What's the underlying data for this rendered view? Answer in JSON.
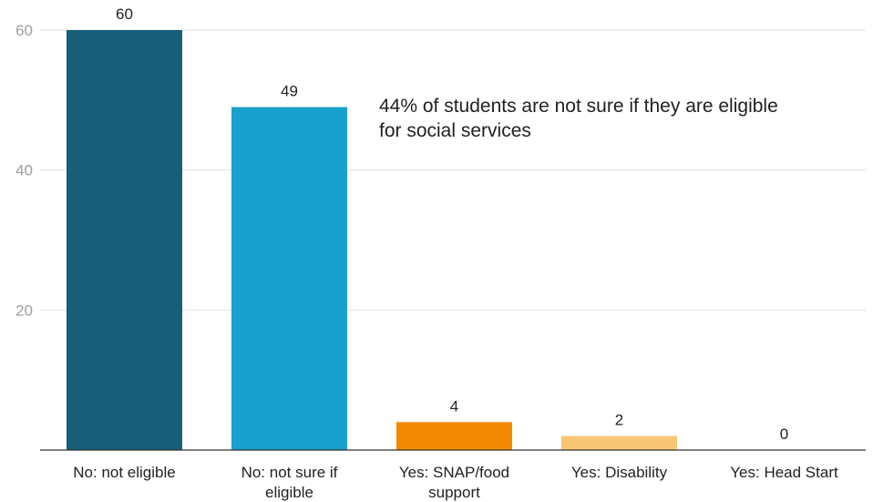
{
  "chart_data": {
    "type": "bar",
    "categories": [
      "No: not eligible",
      "No: not sure if eligible",
      "Yes: SNAP/food support",
      "Yes: Disability",
      "Yes: Head Start"
    ],
    "category_lines": [
      [
        "No: not eligible"
      ],
      [
        "No: not sure if",
        "eligible"
      ],
      [
        "Yes: SNAP/food",
        "support"
      ],
      [
        "Yes: Disability"
      ],
      [
        "Yes: Head Start"
      ]
    ],
    "values": [
      60,
      49,
      4,
      2,
      0
    ],
    "data_labels": [
      "60",
      "49",
      "4",
      "2",
      "0"
    ],
    "colors": [
      "#175e78",
      "#1aa0cf",
      "#f28a00",
      "#f7c672",
      "#cccccc"
    ],
    "title": "",
    "xlabel": "",
    "ylabel": "",
    "ylim": [
      0,
      60
    ],
    "yticks": [
      20,
      40,
      60
    ],
    "ytick_labels": [
      "20",
      "40",
      "60"
    ],
    "grid": true,
    "legend": "none",
    "annotation": {
      "lines": [
        "44% of students are not sure if they are eligible",
        "for social services"
      ]
    }
  }
}
